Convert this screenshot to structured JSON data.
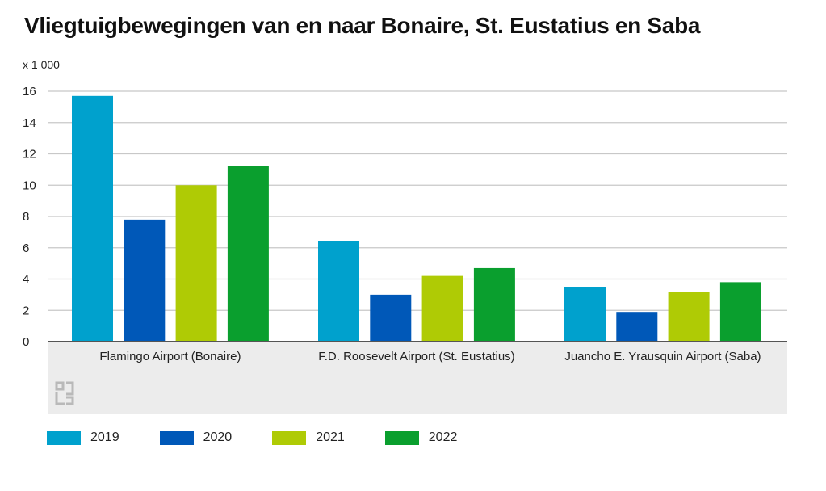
{
  "title": "Vliegtuigbewegingen van en naar Bonaire, St. Eustatius en Saba",
  "chart_data": {
    "type": "bar",
    "title": "Vliegtuigbewegingen van en naar Bonaire, St. Eustatius en Saba",
    "unit_label": "x 1 000",
    "categories": [
      "Flamingo Airport (Bonaire)",
      "F.D. Roosevelt Airport (St. Eustatius)",
      "Juancho E. Yrausquin Airport (Saba)"
    ],
    "series": [
      {
        "name": "2019",
        "color": "#00a1cd",
        "values": [
          15.7,
          6.4,
          3.5
        ]
      },
      {
        "name": "2020",
        "color": "#0058b8",
        "values": [
          7.8,
          3.0,
          1.9
        ]
      },
      {
        "name": "2021",
        "color": "#afcb05",
        "values": [
          10.0,
          4.2,
          3.2
        ]
      },
      {
        "name": "2022",
        "color": "#0a9f2e",
        "values": [
          11.2,
          4.7,
          3.8
        ]
      }
    ],
    "yticks": [
      "0",
      "2",
      "4",
      "6",
      "8",
      "10",
      "12",
      "14",
      "16"
    ],
    "ylim": [
      0,
      16
    ],
    "grid": true,
    "legend_position": "bottom"
  }
}
